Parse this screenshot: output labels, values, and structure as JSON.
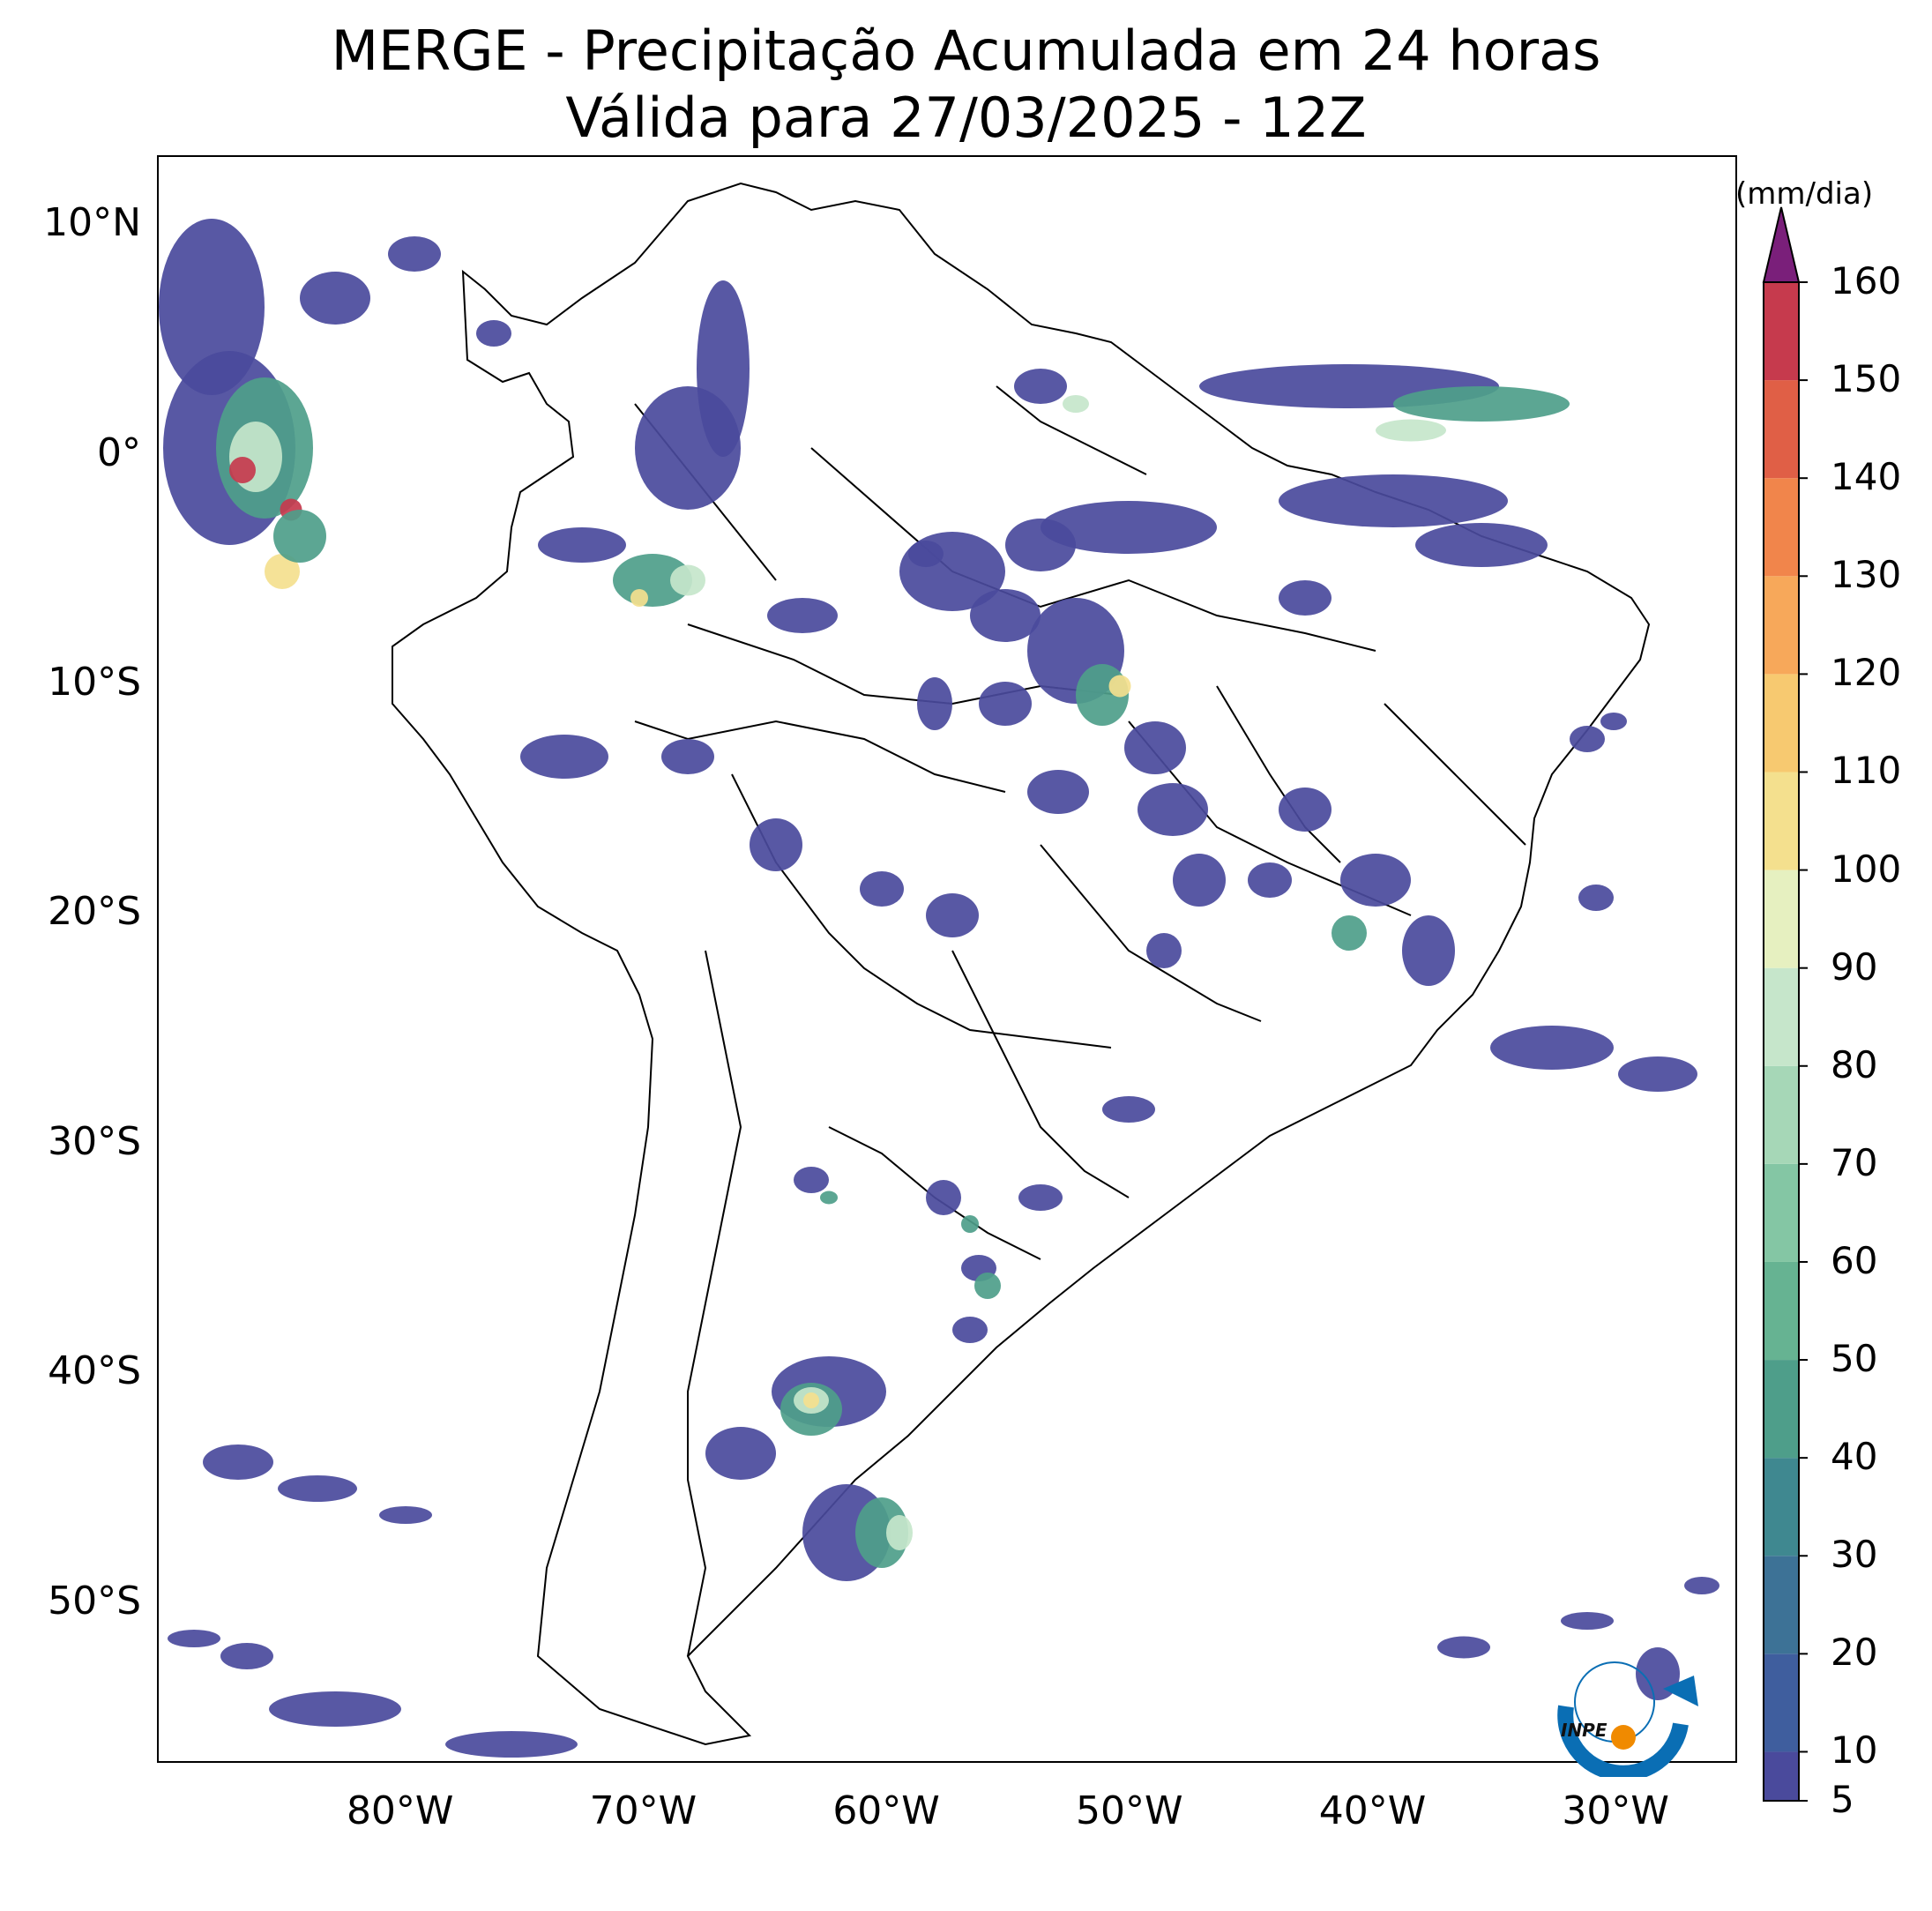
{
  "title": {
    "line1": "MERGE - Precipitação Acumulada em 24 horas",
    "line2": "Válida para 27/03/2025 - 12Z"
  },
  "axes": {
    "lat_ticks": [
      {
        "label": "10°N",
        "value": 10
      },
      {
        "label": "0°",
        "value": 0
      },
      {
        "label": "10°S",
        "value": -10
      },
      {
        "label": "20°S",
        "value": -20
      },
      {
        "label": "30°S",
        "value": -30
      },
      {
        "label": "40°S",
        "value": -40
      },
      {
        "label": "50°S",
        "value": -50
      }
    ],
    "lon_ticks": [
      {
        "label": "80°W",
        "value": -80
      },
      {
        "label": "70°W",
        "value": -70
      },
      {
        "label": "60°W",
        "value": -60
      },
      {
        "label": "50°W",
        "value": -50
      },
      {
        "label": "40°W",
        "value": -40
      },
      {
        "label": "30°W",
        "value": -30
      }
    ],
    "lon_range": [
      -90,
      -25
    ],
    "lat_range": [
      -57,
      13
    ]
  },
  "colorbar": {
    "unit": "(mm/dia)",
    "tick_labels": [
      "5",
      "10",
      "20",
      "30",
      "40",
      "50",
      "60",
      "70",
      "80",
      "90",
      "100",
      "110",
      "120",
      "130",
      "140",
      "150",
      "160"
    ],
    "levels": [
      5,
      10,
      20,
      30,
      40,
      50,
      60,
      70,
      80,
      90,
      100,
      110,
      120,
      130,
      140,
      150,
      160
    ],
    "colors": [
      "#4a4a9c",
      "#3f5e9e",
      "#3d7296",
      "#3f8890",
      "#4e9e8a",
      "#66b392",
      "#84c6a4",
      "#a6d7b7",
      "#c6e6cb",
      "#e6f0c0",
      "#f4e08e",
      "#f7c970",
      "#f7a85a",
      "#f1854b",
      "#e05f46",
      "#c63a4d",
      "#a11f4f"
    ],
    "extend_color": "#7a1f7a"
  },
  "logo": {
    "text": "INPE",
    "colors": {
      "arc": "#0a6eb4",
      "dot": "#f08a00"
    }
  },
  "map_colors": {
    "light": "#4a4a9c",
    "medium": "#4e9e8a",
    "heavy": "#c6e6cb",
    "extreme": "#f4e08e",
    "peak": "#c63a4d"
  }
}
